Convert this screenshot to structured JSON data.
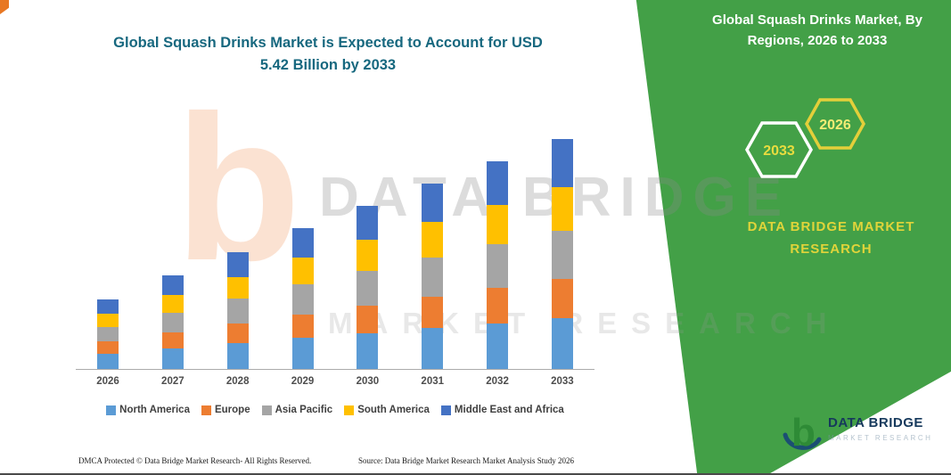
{
  "title": {
    "text": "Global Squash Drinks Market is Expected to Account for USD 5.42 Billion by 2033"
  },
  "side_panel": {
    "title": "Global Squash Drinks Market, By Regions, 2026 to 2033",
    "hexagons": {
      "back": "2033",
      "front": "2026"
    },
    "brand_line1": "DATA BRIDGE MARKET",
    "brand_line2": "RESEARCH",
    "panel_color": "#43A047",
    "accent_yellow": "#E8DC3F"
  },
  "watermark": {
    "line1": "DATA BRIDGE",
    "line2": "MARKET RESEARCH",
    "letter": "b"
  },
  "chart_data": {
    "type": "bar",
    "stacked": true,
    "title": "Global Squash Drinks Market is Expected to Account for USD 5.42 Billion by 2033",
    "unit": "USD Billion",
    "categories": [
      "2026",
      "2027",
      "2028",
      "2029",
      "2030",
      "2031",
      "2032",
      "2033"
    ],
    "series": [
      {
        "name": "North America",
        "color": "#5B9BD5",
        "values": [
          0.36,
          0.49,
          0.6,
          0.73,
          0.85,
          0.96,
          1.08,
          1.19
        ]
      },
      {
        "name": "Europe",
        "color": "#ED7D31",
        "values": [
          0.28,
          0.38,
          0.47,
          0.56,
          0.65,
          0.74,
          0.83,
          0.92
        ]
      },
      {
        "name": "Asia Pacific",
        "color": "#A5A5A5",
        "values": [
          0.34,
          0.46,
          0.58,
          0.7,
          0.81,
          0.92,
          1.03,
          1.14
        ]
      },
      {
        "name": "South America",
        "color": "#FFC000",
        "values": [
          0.31,
          0.42,
          0.52,
          0.63,
          0.73,
          0.83,
          0.93,
          1.03
        ]
      },
      {
        "name": "Middle East and Africa",
        "color": "#4472C4",
        "values": [
          0.35,
          0.46,
          0.57,
          0.69,
          0.81,
          0.91,
          1.02,
          1.14
        ]
      }
    ],
    "totals": [
      1.64,
      2.21,
      2.74,
      3.31,
      3.85,
      4.36,
      4.89,
      5.42
    ],
    "ylim": [
      0,
      5.6
    ],
    "grid": false,
    "legend_position": "bottom"
  },
  "footer": {
    "dmca": "DMCA Protected © Data Bridge Market Research-  All Rights Reserved.",
    "source": "Source: Data Bridge Market Research  Market Analysis Study 2026"
  },
  "logo": {
    "name": "DATA BRIDGE",
    "sub": "MARKET RESEARCH"
  }
}
